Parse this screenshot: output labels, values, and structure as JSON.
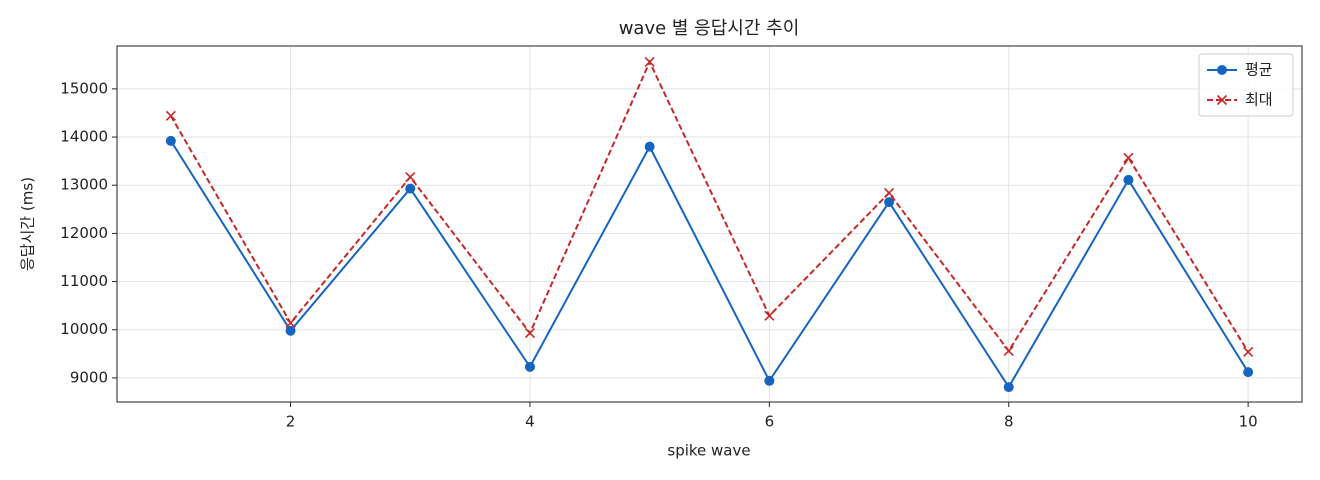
{
  "chart_data": {
    "type": "line",
    "title": "wave 별 응답시간 추이",
    "x_label": "spike wave",
    "y_label": "응답시간 (ms)",
    "x": [
      1,
      2,
      3,
      4,
      5,
      6,
      7,
      8,
      9,
      10
    ],
    "series": [
      {
        "name": "평균",
        "color": "#1565c0",
        "marker": "o",
        "linestyle": "solid",
        "values": [
          13920,
          9980,
          12930,
          9230,
          13800,
          8940,
          12650,
          8810,
          13110,
          9120
        ]
      },
      {
        "name": "최대",
        "color": "#c62828",
        "marker": "x",
        "linestyle": "dashed",
        "values": [
          14440,
          10140,
          13170,
          9930,
          15560,
          10290,
          12840,
          9560,
          13570,
          9540
        ]
      }
    ],
    "xlim": [
      0.55,
      10.45
    ],
    "xticks": [
      2,
      4,
      6,
      8,
      10
    ],
    "ylim": [
      8500,
      15890
    ],
    "yticks": [
      9000,
      10000,
      11000,
      12000,
      13000,
      14000,
      15000
    ],
    "grid": true,
    "legend": "upper right"
  }
}
